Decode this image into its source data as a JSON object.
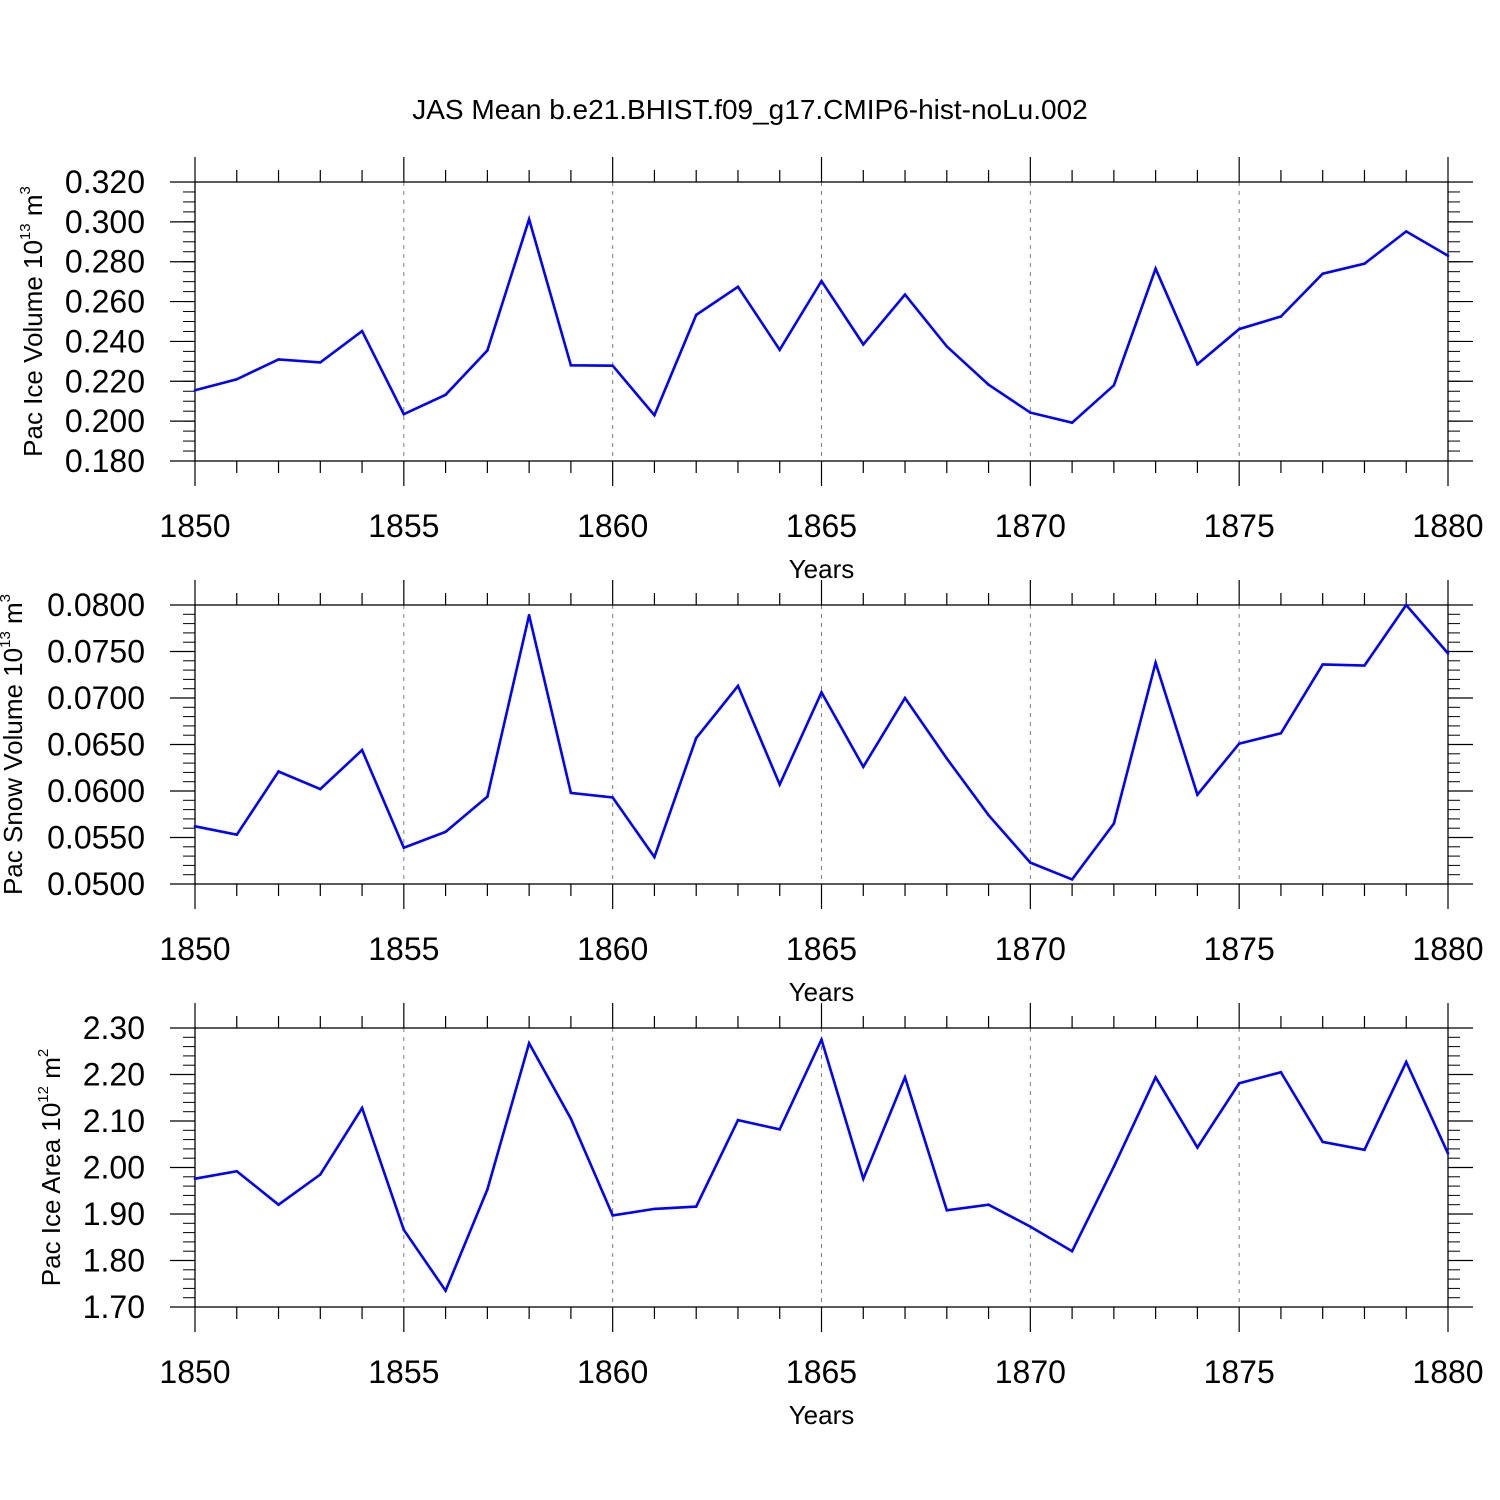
{
  "title": "JAS Mean b.e21.BHIST.f09_g17.CMIP6-hist-noLu.002",
  "chart_data": [
    {
      "type": "line",
      "ylabel": {
        "prefix": "Pac Ice Volume 10",
        "exp": "13",
        "unit": " m",
        "unit_exp": "3"
      },
      "xlabel": "Years",
      "xlim": [
        1850,
        1880
      ],
      "ylim": [
        0.18,
        0.32
      ],
      "yticks": [
        0.18,
        0.2,
        0.22,
        0.24,
        0.26,
        0.28,
        0.3,
        0.32
      ],
      "ytick_labels": [
        "0.180",
        "0.200",
        "0.220",
        "0.240",
        "0.260",
        "0.280",
        "0.300",
        "0.320"
      ],
      "ytick_minor": 0.005,
      "x": [
        1850,
        1851,
        1852,
        1853,
        1854,
        1855,
        1856,
        1857,
        1858,
        1859,
        1860,
        1861,
        1862,
        1863,
        1864,
        1865,
        1866,
        1867,
        1868,
        1869,
        1870,
        1871,
        1872,
        1873,
        1874,
        1875,
        1876,
        1877,
        1878,
        1879,
        1880
      ],
      "values": [
        0.2155,
        0.221,
        0.231,
        0.2295,
        0.2452,
        0.2035,
        0.2132,
        0.2355,
        0.3013,
        0.228,
        0.2278,
        0.203,
        0.2533,
        0.2674,
        0.2358,
        0.2703,
        0.2385,
        0.2635,
        0.2375,
        0.2183,
        0.2043,
        0.1992,
        0.218,
        0.2765,
        0.2285,
        0.2462,
        0.2525,
        0.274,
        0.279,
        0.2952,
        0.283
      ]
    },
    {
      "type": "line",
      "ylabel": {
        "prefix": "Pac Snow Volume 10",
        "exp": "13",
        "unit": " m",
        "unit_exp": "3"
      },
      "xlabel": "Years",
      "xlim": [
        1850,
        1880
      ],
      "ylim": [
        0.05,
        0.08
      ],
      "yticks": [
        0.05,
        0.055,
        0.06,
        0.065,
        0.07,
        0.075,
        0.08
      ],
      "ytick_labels": [
        "0.0500",
        "0.0550",
        "0.0600",
        "0.0650",
        "0.0700",
        "0.0750",
        "0.0800"
      ],
      "ytick_minor": 0.001,
      "x": [
        1850,
        1851,
        1852,
        1853,
        1854,
        1855,
        1856,
        1857,
        1858,
        1859,
        1860,
        1861,
        1862,
        1863,
        1864,
        1865,
        1866,
        1867,
        1868,
        1869,
        1870,
        1871,
        1872,
        1873,
        1874,
        1875,
        1876,
        1877,
        1878,
        1879,
        1880
      ],
      "values": [
        0.0562,
        0.0553,
        0.0621,
        0.0602,
        0.0644,
        0.0539,
        0.0556,
        0.0594,
        0.0789,
        0.0598,
        0.0593,
        0.0529,
        0.0657,
        0.0713,
        0.0607,
        0.0706,
        0.0626,
        0.07,
        0.0635,
        0.0574,
        0.0523,
        0.0505,
        0.0565,
        0.0738,
        0.0596,
        0.0651,
        0.0662,
        0.0736,
        0.0735,
        0.08,
        0.0748
      ]
    },
    {
      "type": "line",
      "ylabel": {
        "prefix": "Pac Ice Area 10",
        "exp": "12",
        "unit": " m",
        "unit_exp": "2"
      },
      "xlabel": "Years",
      "xlim": [
        1850,
        1880
      ],
      "ylim": [
        1.7,
        2.3
      ],
      "yticks": [
        1.7,
        1.8,
        1.9,
        2.0,
        2.1,
        2.2,
        2.3
      ],
      "ytick_labels": [
        "1.70",
        "1.80",
        "1.90",
        "2.00",
        "2.10",
        "2.20",
        "2.30"
      ],
      "ytick_minor": 0.02,
      "x": [
        1850,
        1851,
        1852,
        1853,
        1854,
        1855,
        1856,
        1857,
        1858,
        1859,
        1860,
        1861,
        1862,
        1863,
        1864,
        1865,
        1866,
        1867,
        1868,
        1869,
        1870,
        1871,
        1872,
        1873,
        1874,
        1875,
        1876,
        1877,
        1878,
        1879,
        1880
      ],
      "values": [
        1.976,
        1.992,
        1.92,
        1.985,
        2.128,
        1.866,
        1.735,
        1.953,
        2.267,
        2.105,
        1.897,
        1.911,
        1.916,
        2.102,
        2.082,
        2.275,
        1.976,
        2.194,
        1.908,
        1.92,
        1.873,
        1.82,
        2.002,
        2.194,
        2.043,
        2.181,
        2.205,
        2.055,
        2.038,
        2.227,
        2.03
      ]
    }
  ],
  "xticks": [
    1850,
    1855,
    1860,
    1865,
    1870,
    1875,
    1880
  ],
  "xtick_labels": [
    "1850",
    "1855",
    "1860",
    "1865",
    "1870",
    "1875",
    "1880"
  ],
  "line_color": "#0000ff",
  "grid_color": "#7f7f7f"
}
